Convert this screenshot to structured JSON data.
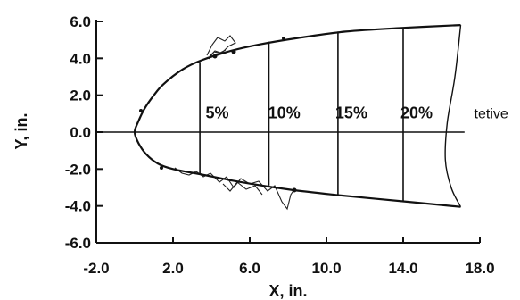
{
  "chart_data": {
    "type": "line",
    "title": "",
    "xlabel": "X, in.",
    "ylabel": "Y, in.",
    "xlim": [
      -2.0,
      18.0
    ],
    "ylim": [
      -6.0,
      6.0
    ],
    "x_ticks": [
      -2.0,
      2.0,
      6.0,
      10.0,
      14.0,
      18.0
    ],
    "x_tick_labels": [
      "-2.0",
      "2.0",
      "6.0",
      "10.0",
      "14.0",
      "18.0"
    ],
    "y_ticks": [
      6.0,
      4.0,
      2.0,
      0.0,
      -2.0,
      -4.0,
      -6.0
    ],
    "y_tick_labels": [
      "6.0",
      "4.0",
      "2.0",
      "0.0",
      "-2.0",
      "-4.0",
      "-6.0"
    ],
    "grid": false,
    "series": [
      {
        "values": [
          [
            17.0,
            5.8
          ],
          [
            14.0,
            5.65
          ],
          [
            11.0,
            5.45
          ],
          [
            8.5,
            5.1
          ],
          [
            6.5,
            4.75
          ],
          [
            5.0,
            4.4
          ],
          [
            3.5,
            3.9
          ],
          [
            2.5,
            3.4
          ],
          [
            1.5,
            2.6
          ],
          [
            1.0,
            2.0
          ],
          [
            0.5,
            1.25
          ],
          [
            0.2,
            0.6
          ],
          [
            0.0,
            0.0
          ],
          [
            0.2,
            -0.6
          ],
          [
            0.6,
            -1.2
          ],
          [
            1.2,
            -1.7
          ],
          [
            2.0,
            -2.0
          ],
          [
            3.5,
            -2.3
          ],
          [
            5.5,
            -2.7
          ],
          [
            8.0,
            -3.1
          ],
          [
            10.5,
            -3.4
          ],
          [
            14.0,
            -3.75
          ],
          [
            17.0,
            -4.05
          ]
        ]
      },
      {
        "values": [
          [
            17.0,
            5.8
          ],
          [
            16.7,
            3.0
          ],
          [
            16.3,
            0.5
          ],
          [
            16.2,
            -1.5
          ],
          [
            16.5,
            -3.0
          ],
          [
            17.0,
            -4.05
          ]
        ]
      }
    ],
    "vertical_lines": [
      {
        "x": 3.4,
        "y_top": 3.8,
        "y_bottom": -2.3
      },
      {
        "x": 7.0,
        "y_top": 4.9,
        "y_bottom": -2.9
      },
      {
        "x": 10.6,
        "y_top": 5.45,
        "y_bottom": -3.4
      },
      {
        "x": 14.0,
        "y_top": 5.65,
        "y_bottom": -3.75
      }
    ],
    "annotations": [
      {
        "text": "5%",
        "x": 4.3,
        "y": 0.75
      },
      {
        "text": "10%",
        "x": 7.8,
        "y": 0.75
      },
      {
        "text": "15%",
        "x": 11.3,
        "y": 0.75
      },
      {
        "text": "20%",
        "x": 14.7,
        "y": 0.75
      },
      {
        "text": "tetive",
        "x": 17.7,
        "y": 0.75
      }
    ]
  }
}
